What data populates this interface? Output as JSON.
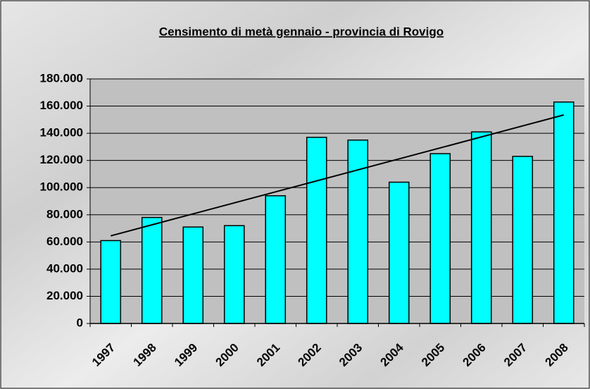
{
  "chart_data": {
    "type": "bar",
    "title": "Censimento di metà gennaio - provincia di Rovigo",
    "categories": [
      "1997",
      "1998",
      "1999",
      "2000",
      "2001",
      "2002",
      "2003",
      "2004",
      "2005",
      "2006",
      "2007",
      "2008"
    ],
    "values": [
      61000,
      78000,
      71000,
      72000,
      94000,
      137000,
      135000,
      104000,
      125000,
      141000,
      123000,
      163000
    ],
    "color": "#00ffff",
    "trendline": {
      "color": "#000000",
      "values": [
        64500,
        153500
      ]
    },
    "ylim": [
      0,
      180000
    ],
    "yticks": [
      0,
      {
        "value": 20000,
        "label": "20.000"
      },
      {
        "value": 40000,
        "label": "40.000"
      },
      {
        "value": 60000,
        "label": "60.000"
      },
      {
        "value": 80000,
        "label": "80.000"
      },
      {
        "value": 100000,
        "label": "100.000"
      },
      {
        "value": 120000,
        "label": "120.000"
      },
      {
        "value": 140000,
        "label": "140.000"
      },
      {
        "value": 160000,
        "label": "160.000"
      },
      {
        "value": 180000,
        "label": "180.000"
      }
    ],
    "grid": true
  }
}
